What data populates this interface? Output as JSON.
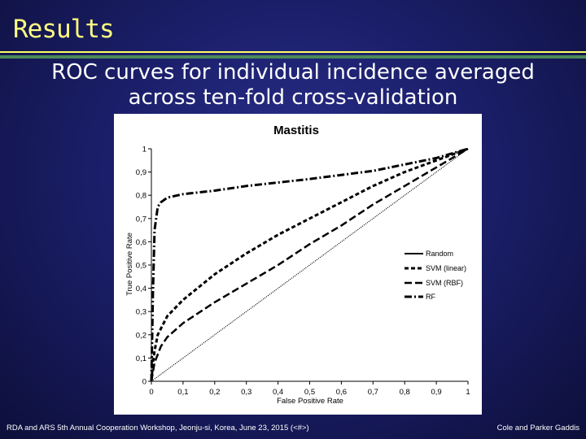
{
  "slide": {
    "title": "Results",
    "subtitle_line1": "ROC curves for individual incidence averaged",
    "subtitle_line2": "across ten-fold cross-validation",
    "footer_left": "RDA and ARS 5th Annual Cooperation Workshop, Jeonju-si, Korea, June 23, 2015 (<#>)",
    "footer_right": "Cole and Parker Gaddis",
    "colors": {
      "title": "#ffff80",
      "rule_yellow": "#ffff60",
      "rule_green": "#4a8a5a",
      "background": "#1b1f6a"
    }
  },
  "chart_data": {
    "type": "line",
    "title": "Mastitis",
    "xlabel": "False Positive Rate",
    "ylabel": "True Positive Rate",
    "xlim": [
      0,
      1
    ],
    "ylim": [
      0,
      1
    ],
    "x_ticks": [
      "0",
      "0,1",
      "0,2",
      "0,3",
      "0,4",
      "0,5",
      "0,6",
      "0,7",
      "0,8",
      "0,9",
      "1"
    ],
    "y_ticks": [
      "0",
      "0,1",
      "0,2",
      "0,3",
      "0,4",
      "0,5",
      "0,6",
      "0,7",
      "0,8",
      "0,9",
      "1"
    ],
    "legend_position": "right",
    "series": [
      {
        "name": "Random",
        "style": "solid",
        "x": [
          0,
          1
        ],
        "y": [
          0,
          1
        ]
      },
      {
        "name": "SVM (linear)",
        "style": "dashed",
        "x": [
          0,
          0.005,
          0.01,
          0.02,
          0.05,
          0.1,
          0.2,
          0.3,
          0.4,
          0.5,
          0.6,
          0.7,
          0.8,
          0.9,
          1
        ],
        "y": [
          0,
          0.08,
          0.13,
          0.2,
          0.28,
          0.35,
          0.46,
          0.55,
          0.63,
          0.7,
          0.77,
          0.84,
          0.9,
          0.95,
          1
        ]
      },
      {
        "name": "SVM (RBF)",
        "style": "dashed",
        "x": [
          0,
          0.01,
          0.03,
          0.05,
          0.1,
          0.2,
          0.3,
          0.4,
          0.5,
          0.6,
          0.7,
          0.8,
          0.9,
          1
        ],
        "y": [
          0,
          0.08,
          0.15,
          0.19,
          0.25,
          0.34,
          0.42,
          0.5,
          0.59,
          0.67,
          0.76,
          0.84,
          0.92,
          1
        ]
      },
      {
        "name": "RF",
        "style": "dashdot",
        "x": [
          0,
          0.005,
          0.01,
          0.02,
          0.03,
          0.05,
          0.1,
          0.2,
          0.3,
          0.5,
          0.7,
          0.9,
          1
        ],
        "y": [
          0,
          0.38,
          0.65,
          0.75,
          0.77,
          0.79,
          0.805,
          0.82,
          0.84,
          0.87,
          0.905,
          0.96,
          1
        ]
      }
    ]
  }
}
